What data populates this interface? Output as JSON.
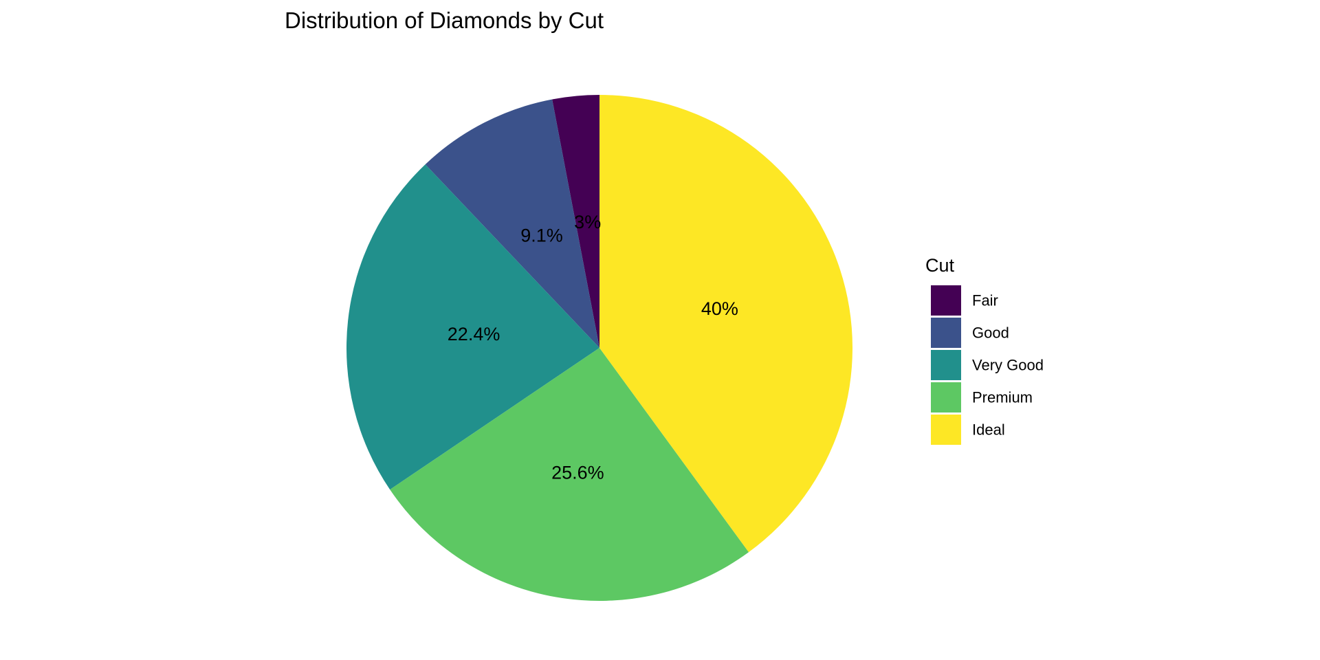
{
  "chart_data": {
    "type": "pie",
    "title": "Distribution of Diamonds by Cut",
    "legend_title": "Cut",
    "legend_position": "right",
    "start_angle_deg": 0,
    "direction": "counterclockwise",
    "categories": [
      "Fair",
      "Good",
      "Very Good",
      "Premium",
      "Ideal"
    ],
    "values": [
      3.0,
      9.1,
      22.4,
      25.6,
      40.0
    ],
    "labels": [
      "3%",
      "9.1%",
      "22.4%",
      "25.6%",
      "40%"
    ],
    "colors": [
      "#440154",
      "#3B528B",
      "#21908C",
      "#5DC863",
      "#FDE725"
    ]
  }
}
